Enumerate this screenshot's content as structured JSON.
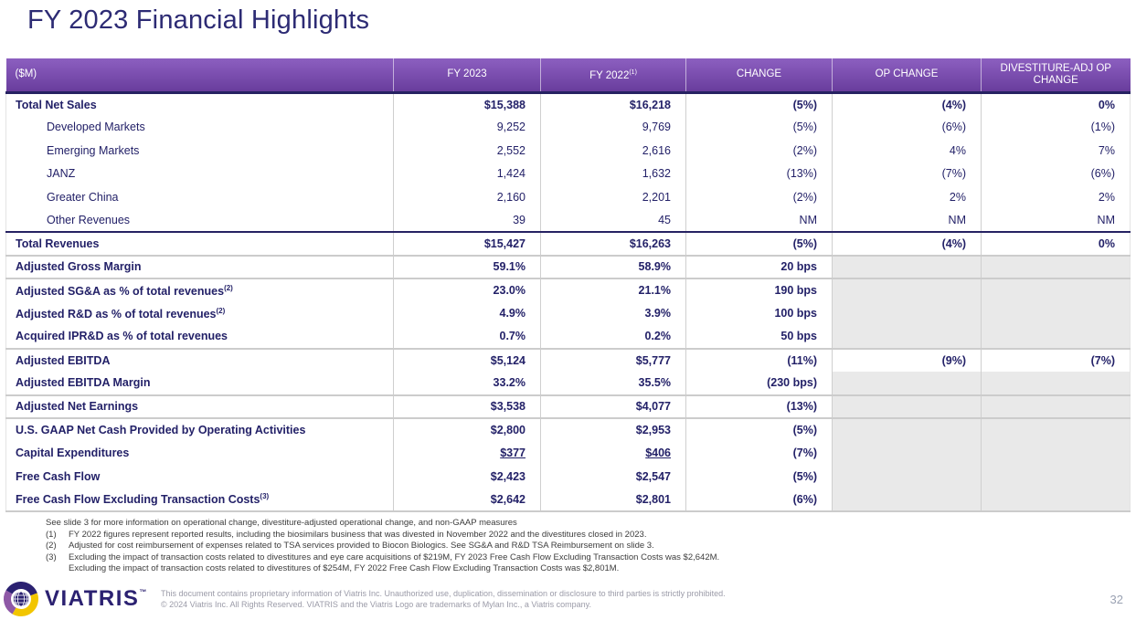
{
  "title": "FY 2023 Financial Highlights",
  "colors": {
    "header_purple_top": "#8c5fc0",
    "header_purple_bottom": "#693d9d",
    "brand_navy": "#262262",
    "text_navy": "#232168",
    "gray_cell": "#e9e9e9",
    "logo_yellow": "#f2c500",
    "logo_purple": "#8e58a6"
  },
  "table": {
    "header": {
      "col0": "($M)",
      "col1": "FY 2023",
      "col2": "FY 2022",
      "col2_sup": "(1)",
      "col3": "CHANGE",
      "col4": "OP CHANGE",
      "col5": "DIVESTITURE-ADJ OP CHANGE"
    },
    "rows": [
      {
        "label": "Total Net Sales",
        "sup": "",
        "indent": false,
        "bold": true,
        "underline": false,
        "border": "none",
        "grayTail": false,
        "values": [
          "$15,388",
          "$16,218",
          "(5%)",
          "(4%)",
          "0%"
        ]
      },
      {
        "label": "Developed Markets",
        "sup": "",
        "indent": true,
        "bold": false,
        "underline": false,
        "border": "none",
        "grayTail": false,
        "values": [
          "9,252",
          "9,769",
          "(5%)",
          "(6%)",
          "(1%)"
        ]
      },
      {
        "label": "Emerging Markets",
        "sup": "",
        "indent": true,
        "bold": false,
        "underline": false,
        "border": "none",
        "grayTail": false,
        "values": [
          "2,552",
          "2,616",
          "(2%)",
          "4%",
          "7%"
        ]
      },
      {
        "label": "JANZ",
        "sup": "",
        "indent": true,
        "bold": false,
        "underline": false,
        "border": "none",
        "grayTail": false,
        "values": [
          "1,424",
          "1,632",
          "(13%)",
          "(7%)",
          "(6%)"
        ]
      },
      {
        "label": "Greater China",
        "sup": "",
        "indent": true,
        "bold": false,
        "underline": false,
        "border": "none",
        "grayTail": false,
        "values": [
          "2,160",
          "2,201",
          "(2%)",
          "2%",
          "2%"
        ]
      },
      {
        "label": "Other Revenues",
        "sup": "",
        "indent": true,
        "bold": false,
        "underline": false,
        "border": "none",
        "grayTail": false,
        "values": [
          "39",
          "45",
          "NM",
          "NM",
          "NM"
        ]
      },
      {
        "label": "Total Revenues",
        "sup": "",
        "indent": false,
        "bold": true,
        "underline": false,
        "border": "navy",
        "grayTail": false,
        "values": [
          "$15,427",
          "$16,263",
          "(5%)",
          "(4%)",
          "0%"
        ]
      },
      {
        "label": "Adjusted Gross Margin",
        "sup": "",
        "indent": false,
        "bold": true,
        "underline": false,
        "border": "gray",
        "grayTail": true,
        "values": [
          "59.1%",
          "58.9%",
          "20 bps",
          "",
          ""
        ]
      },
      {
        "label": "Adjusted SG&A as % of total revenues",
        "sup": "(2)",
        "indent": false,
        "bold": true,
        "underline": false,
        "border": "gray",
        "grayTail": true,
        "values": [
          "23.0%",
          "21.1%",
          "190 bps",
          "",
          ""
        ]
      },
      {
        "label": "Adjusted R&D as % of total revenues",
        "sup": "(2)",
        "indent": false,
        "bold": true,
        "underline": false,
        "border": "none",
        "grayTail": true,
        "values": [
          "4.9%",
          "3.9%",
          "100 bps",
          "",
          ""
        ]
      },
      {
        "label": "Acquired IPR&D as % of total revenues",
        "sup": "",
        "indent": false,
        "bold": true,
        "underline": false,
        "border": "none",
        "grayTail": true,
        "values": [
          "0.7%",
          "0.2%",
          "50 bps",
          "",
          ""
        ]
      },
      {
        "label": "Adjusted EBITDA",
        "sup": "",
        "indent": false,
        "bold": true,
        "underline": false,
        "border": "gray",
        "grayTail": false,
        "values": [
          "$5,124",
          "$5,777",
          "(11%)",
          "(9%)",
          "(7%)"
        ]
      },
      {
        "label": "Adjusted EBITDA Margin",
        "sup": "",
        "indent": false,
        "bold": true,
        "underline": false,
        "border": "none",
        "grayTail": true,
        "values": [
          "33.2%",
          "35.5%",
          "(230 bps)",
          "",
          ""
        ]
      },
      {
        "label": "Adjusted Net Earnings",
        "sup": "",
        "indent": false,
        "bold": true,
        "underline": false,
        "border": "gray",
        "grayTail": true,
        "values": [
          "$3,538",
          "$4,077",
          "(13%)",
          "",
          ""
        ]
      },
      {
        "label": "U.S. GAAP Net Cash Provided by Operating Activities",
        "sup": "",
        "indent": false,
        "bold": true,
        "underline": false,
        "border": "gray",
        "grayTail": true,
        "values": [
          "$2,800",
          "$2,953",
          "(5%)",
          "",
          ""
        ]
      },
      {
        "label": "Capital Expenditures",
        "sup": "",
        "indent": false,
        "bold": true,
        "underline": true,
        "border": "none",
        "grayTail": true,
        "values": [
          "$377",
          "$406",
          "(7%)",
          "",
          ""
        ]
      },
      {
        "label": "Free Cash Flow",
        "sup": "",
        "indent": false,
        "bold": true,
        "underline": false,
        "border": "none",
        "grayTail": true,
        "values": [
          "$2,423",
          "$2,547",
          "(5%)",
          "",
          ""
        ]
      },
      {
        "label": "Free Cash Flow Excluding Transaction Costs",
        "sup": "(3)",
        "indent": false,
        "bold": true,
        "underline": false,
        "border": "none",
        "grayTail": true,
        "values": [
          "$2,642",
          "$2,801",
          "(6%)",
          "",
          ""
        ]
      }
    ]
  },
  "footnotes": {
    "intro": "See slide 3 for more information on operational change, divestiture-adjusted operational change, and non-GAAP measures",
    "items": [
      {
        "num": "(1)",
        "line1": "FY 2022 figures represent reported results, including the biosimilars business that was divested in November 2022 and the divestitures closed in 2023.",
        "line2": ""
      },
      {
        "num": "(2)",
        "line1": "Adjusted for cost reimbursement of expenses related to TSA services provided to Biocon Biologics. See SG&A and R&D TSA Reimbursement on slide 3.",
        "line2": ""
      },
      {
        "num": "(3)",
        "line1": "Excluding the impact of transaction costs related to divestitures and eye care acquisitions of $219M, FY 2023 Free Cash Flow Excluding Transaction Costs was $2,642M.",
        "line2": "Excluding the impact of transaction costs related to divestitures of $254M, FY 2022 Free Cash Flow Excluding Transaction Costs was $2,801M."
      }
    ]
  },
  "footer": {
    "logo_text": "VIATRIS",
    "logo_tm": "™",
    "disclaimer_line1": "This document contains proprietary information of Viatris Inc. Unauthorized use, duplication, dissemination or disclosure to third parties is strictly prohibited.",
    "disclaimer_line2": "© 2024 Viatris Inc. All Rights Reserved. VIATRIS and the Viatris Logo are trademarks of Mylan Inc., a Viatris company.",
    "page_number": "32"
  }
}
